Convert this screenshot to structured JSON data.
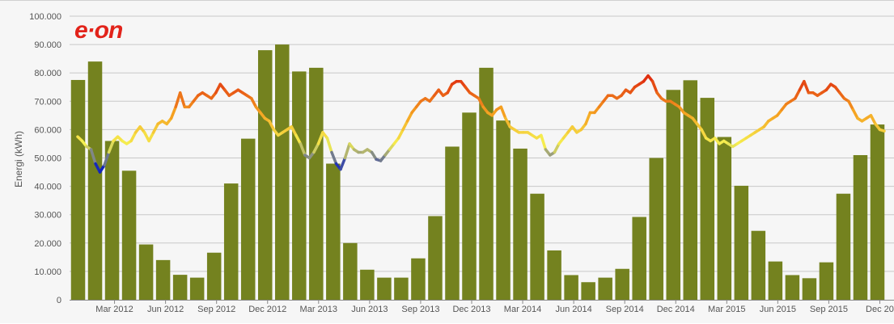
{
  "logo": {
    "text": "e·on",
    "color": "#e2231a"
  },
  "chart_data": {
    "type": "bar",
    "ylabel": "Energi (kWh)",
    "ylim": [
      0,
      100000
    ],
    "yticks": [
      0,
      10000,
      20000,
      30000,
      40000,
      50000,
      60000,
      70000,
      80000,
      90000,
      100000
    ],
    "ytick_labels": [
      "0",
      "10.000",
      "20.000",
      "30.000",
      "40.000",
      "50.000",
      "60.000",
      "70.000",
      "80.000",
      "90.000",
      "100.000"
    ],
    "grid": true,
    "bar_color": "#74821f",
    "x_tick_labels": [
      {
        "label": "Mar 2012",
        "index": 2
      },
      {
        "label": "Jun 2012",
        "index": 5
      },
      {
        "label": "Sep 2012",
        "index": 8
      },
      {
        "label": "Dec 2012",
        "index": 11
      },
      {
        "label": "Mar 2013",
        "index": 14
      },
      {
        "label": "Jun 2013",
        "index": 17
      },
      {
        "label": "Sep 2013",
        "index": 20
      },
      {
        "label": "Dec 2013",
        "index": 23
      },
      {
        "label": "Mar 2014",
        "index": 26
      },
      {
        "label": "Jun 2014",
        "index": 29
      },
      {
        "label": "Sep 2014",
        "index": 32
      },
      {
        "label": "Dec 2014",
        "index": 35
      },
      {
        "label": "Mar 2015",
        "index": 38
      },
      {
        "label": "Jun 2015",
        "index": 41
      },
      {
        "label": "Sep 2015",
        "index": 44
      },
      {
        "label": "Dec 20",
        "index": 47
      }
    ],
    "bars": [
      77500,
      84000,
      56000,
      45500,
      19500,
      14000,
      8800,
      7800,
      16600,
      41000,
      56800,
      88000,
      90000,
      80500,
      81800,
      48000,
      20000,
      10600,
      7800,
      7800,
      14600,
      29500,
      54000,
      66000,
      81800,
      63200,
      53300,
      37400,
      17400,
      8700,
      6200,
      7800,
      10900,
      29200,
      50000,
      74000,
      77400,
      71200,
      57400,
      40200,
      24300,
      13500,
      8700,
      7600,
      13200,
      37400,
      51000,
      61800
    ],
    "temperature_line": {
      "color_scale": [
        "#0a1ebe",
        "#f5f050",
        "#f5a020",
        "#e03010"
      ],
      "values": [
        57.5,
        56,
        54,
        53,
        48,
        45,
        47.5,
        52,
        56,
        57.5,
        56,
        55,
        56,
        59,
        61,
        59,
        56,
        59,
        62,
        63,
        62,
        64,
        68,
        73,
        68,
        68,
        70,
        72,
        73,
        72,
        71,
        73,
        76,
        74,
        72,
        73,
        74,
        73,
        72,
        71,
        68,
        66,
        64,
        63,
        60,
        58,
        59,
        60,
        61,
        58,
        55,
        51,
        50,
        52,
        55,
        59,
        57,
        52,
        48,
        46,
        50,
        55,
        53,
        52,
        52,
        53,
        52,
        49.5,
        49,
        51,
        53,
        55,
        57,
        60,
        63,
        66,
        68,
        70,
        71,
        70,
        72,
        74,
        72,
        73,
        76,
        77,
        77,
        75,
        73,
        72,
        71,
        68,
        66,
        65,
        67,
        68,
        64,
        61,
        60,
        59,
        59,
        59,
        58,
        57,
        58,
        53,
        51,
        52,
        55,
        57,
        59,
        61,
        59,
        60,
        62,
        66,
        66,
        68,
        70,
        72,
        72,
        71,
        72,
        74,
        73,
        75,
        76,
        77,
        79,
        77,
        73,
        71,
        70,
        70,
        69,
        68,
        66,
        65,
        64,
        62,
        60,
        57,
        56,
        57,
        55,
        56,
        55,
        54,
        55,
        56,
        57,
        58,
        59,
        60,
        61,
        63,
        64,
        65,
        67,
        69,
        70,
        71,
        74,
        77,
        73,
        73,
        72,
        73,
        74,
        76,
        75,
        73,
        71,
        70,
        67,
        64,
        63,
        64,
        65,
        62,
        60,
        59.5
      ]
    }
  }
}
